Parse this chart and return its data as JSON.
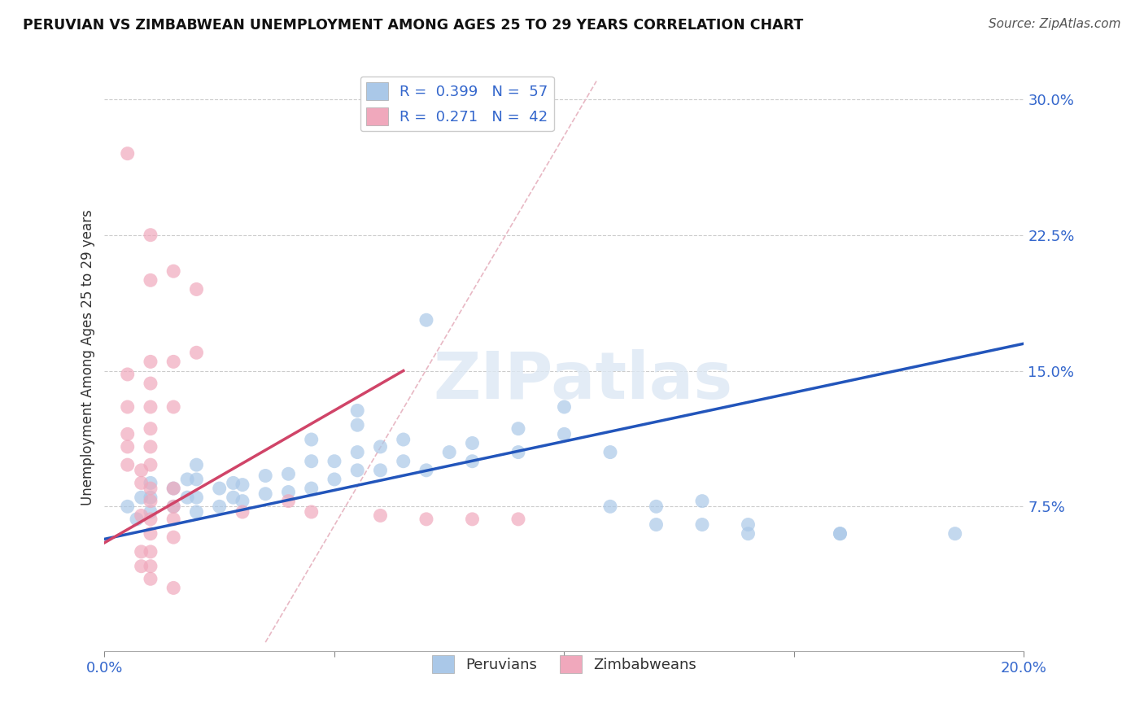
{
  "title": "PERUVIAN VS ZIMBABWEAN UNEMPLOYMENT AMONG AGES 25 TO 29 YEARS CORRELATION CHART",
  "source": "Source: ZipAtlas.com",
  "ylabel": "Unemployment Among Ages 25 to 29 years",
  "xlim": [
    0.0,
    0.2
  ],
  "ylim": [
    -0.005,
    0.32
  ],
  "xticks": [
    0.0,
    0.05,
    0.1,
    0.15,
    0.2
  ],
  "yticks": [
    0.075,
    0.15,
    0.225,
    0.3
  ],
  "ytick_labels": [
    "7.5%",
    "15.0%",
    "22.5%",
    "30.0%"
  ],
  "xtick_labels": [
    "0.0%",
    "",
    "",
    "",
    "20.0%"
  ],
  "blue_color": "#aac8e8",
  "pink_color": "#f0a8bc",
  "blue_line_color": "#2255bb",
  "pink_line_color": "#d04468",
  "diag_line_color": "#e8b8c4",
  "watermark_text": "ZIPatlas",
  "blue_points": [
    [
      0.005,
      0.075
    ],
    [
      0.007,
      0.068
    ],
    [
      0.008,
      0.08
    ],
    [
      0.01,
      0.072
    ],
    [
      0.01,
      0.08
    ],
    [
      0.01,
      0.088
    ],
    [
      0.015,
      0.075
    ],
    [
      0.015,
      0.085
    ],
    [
      0.018,
      0.08
    ],
    [
      0.018,
      0.09
    ],
    [
      0.02,
      0.072
    ],
    [
      0.02,
      0.08
    ],
    [
      0.02,
      0.09
    ],
    [
      0.02,
      0.098
    ],
    [
      0.025,
      0.075
    ],
    [
      0.025,
      0.085
    ],
    [
      0.028,
      0.08
    ],
    [
      0.028,
      0.088
    ],
    [
      0.03,
      0.078
    ],
    [
      0.03,
      0.087
    ],
    [
      0.035,
      0.082
    ],
    [
      0.035,
      0.092
    ],
    [
      0.04,
      0.083
    ],
    [
      0.04,
      0.093
    ],
    [
      0.045,
      0.085
    ],
    [
      0.045,
      0.1
    ],
    [
      0.045,
      0.112
    ],
    [
      0.05,
      0.09
    ],
    [
      0.05,
      0.1
    ],
    [
      0.055,
      0.095
    ],
    [
      0.055,
      0.105
    ],
    [
      0.055,
      0.12
    ],
    [
      0.055,
      0.128
    ],
    [
      0.06,
      0.095
    ],
    [
      0.06,
      0.108
    ],
    [
      0.065,
      0.1
    ],
    [
      0.065,
      0.112
    ],
    [
      0.07,
      0.178
    ],
    [
      0.07,
      0.095
    ],
    [
      0.075,
      0.105
    ],
    [
      0.08,
      0.11
    ],
    [
      0.08,
      0.1
    ],
    [
      0.09,
      0.105
    ],
    [
      0.09,
      0.118
    ],
    [
      0.1,
      0.115
    ],
    [
      0.1,
      0.13
    ],
    [
      0.11,
      0.105
    ],
    [
      0.11,
      0.075
    ],
    [
      0.12,
      0.075
    ],
    [
      0.12,
      0.065
    ],
    [
      0.13,
      0.078
    ],
    [
      0.13,
      0.065
    ],
    [
      0.14,
      0.06
    ],
    [
      0.14,
      0.065
    ],
    [
      0.16,
      0.06
    ],
    [
      0.16,
      0.06
    ],
    [
      0.185,
      0.06
    ]
  ],
  "pink_points": [
    [
      0.005,
      0.27
    ],
    [
      0.01,
      0.225
    ],
    [
      0.01,
      0.2
    ],
    [
      0.015,
      0.205
    ],
    [
      0.02,
      0.195
    ],
    [
      0.01,
      0.155
    ],
    [
      0.015,
      0.155
    ],
    [
      0.02,
      0.16
    ],
    [
      0.005,
      0.148
    ],
    [
      0.01,
      0.143
    ],
    [
      0.005,
      0.13
    ],
    [
      0.01,
      0.13
    ],
    [
      0.015,
      0.13
    ],
    [
      0.005,
      0.115
    ],
    [
      0.01,
      0.118
    ],
    [
      0.005,
      0.108
    ],
    [
      0.01,
      0.108
    ],
    [
      0.005,
      0.098
    ],
    [
      0.008,
      0.095
    ],
    [
      0.01,
      0.098
    ],
    [
      0.008,
      0.088
    ],
    [
      0.01,
      0.085
    ],
    [
      0.015,
      0.085
    ],
    [
      0.01,
      0.078
    ],
    [
      0.015,
      0.075
    ],
    [
      0.008,
      0.07
    ],
    [
      0.01,
      0.068
    ],
    [
      0.015,
      0.068
    ],
    [
      0.01,
      0.06
    ],
    [
      0.015,
      0.058
    ],
    [
      0.008,
      0.05
    ],
    [
      0.01,
      0.05
    ],
    [
      0.008,
      0.042
    ],
    [
      0.01,
      0.042
    ],
    [
      0.01,
      0.035
    ],
    [
      0.015,
      0.03
    ],
    [
      0.03,
      0.072
    ],
    [
      0.04,
      0.078
    ],
    [
      0.045,
      0.072
    ],
    [
      0.06,
      0.07
    ],
    [
      0.07,
      0.068
    ],
    [
      0.08,
      0.068
    ],
    [
      0.09,
      0.068
    ]
  ],
  "blue_line_x": [
    0.0,
    0.2
  ],
  "blue_line_y": [
    0.057,
    0.165
  ],
  "pink_line_x": [
    0.0,
    0.065
  ],
  "pink_line_y": [
    0.055,
    0.15
  ],
  "diag_line_x": [
    0.035,
    0.107
  ],
  "diag_line_y": [
    0.0,
    0.31
  ]
}
